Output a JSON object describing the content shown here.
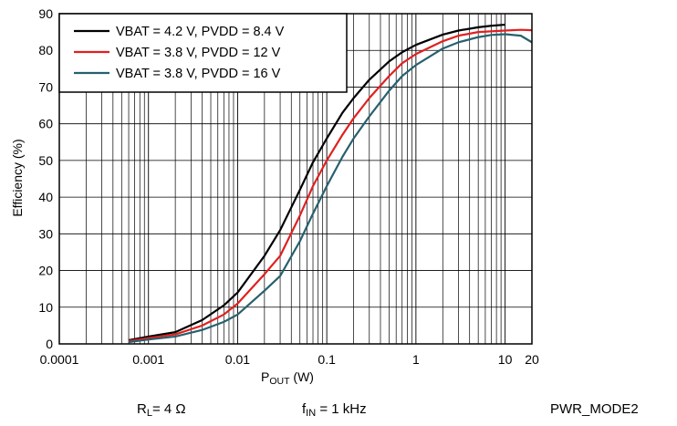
{
  "chart_data": {
    "type": "line",
    "x_scale": "log",
    "xlim": [
      0.0001,
      20
    ],
    "ylim": [
      0,
      90
    ],
    "y_ticks": [
      0,
      10,
      20,
      30,
      40,
      50,
      60,
      70,
      80,
      90
    ],
    "x_ticks": [
      0.0001,
      0.001,
      0.01,
      0.1,
      1,
      10,
      20
    ],
    "x_tick_labels": [
      "0.0001",
      "0.001",
      "0.01",
      "0.1",
      "1",
      "10",
      "20"
    ],
    "ylabel": "Efficiency (%)",
    "xlabel_main": "P",
    "xlabel_sub": "OUT",
    "xlabel_unit": " (W)",
    "grid": true,
    "legend_position": "top-left",
    "series": [
      {
        "name": "VBAT = 4.2 V, PVDD = 8.4 V",
        "color": "#000000",
        "points": [
          [
            0.0006,
            1
          ],
          [
            0.001,
            2
          ],
          [
            0.002,
            3.2
          ],
          [
            0.004,
            6.5
          ],
          [
            0.007,
            10.5
          ],
          [
            0.01,
            14
          ],
          [
            0.02,
            24
          ],
          [
            0.03,
            31
          ],
          [
            0.05,
            42
          ],
          [
            0.07,
            49.5
          ],
          [
            0.1,
            56
          ],
          [
            0.15,
            63
          ],
          [
            0.2,
            67
          ],
          [
            0.3,
            72
          ],
          [
            0.5,
            77
          ],
          [
            0.7,
            79.5
          ],
          [
            1,
            81.5
          ],
          [
            2,
            84.3
          ],
          [
            3,
            85.4
          ],
          [
            5,
            86.3
          ],
          [
            7,
            86.7
          ],
          [
            10,
            87
          ]
        ]
      },
      {
        "name": "VBAT = 3.8 V, PVDD = 12 V",
        "color": "#e02020",
        "points": [
          [
            0.0006,
            0.8
          ],
          [
            0.001,
            1.6
          ],
          [
            0.002,
            2.6
          ],
          [
            0.004,
            5
          ],
          [
            0.007,
            8
          ],
          [
            0.01,
            11
          ],
          [
            0.02,
            19
          ],
          [
            0.03,
            24
          ],
          [
            0.05,
            35
          ],
          [
            0.07,
            43
          ],
          [
            0.1,
            50
          ],
          [
            0.15,
            57
          ],
          [
            0.2,
            61.5
          ],
          [
            0.3,
            67
          ],
          [
            0.5,
            73
          ],
          [
            0.7,
            76.5
          ],
          [
            1,
            79
          ],
          [
            2,
            82.5
          ],
          [
            3,
            84
          ],
          [
            5,
            85
          ],
          [
            10,
            85.4
          ],
          [
            15,
            85.6
          ],
          [
            20,
            85.5
          ]
        ]
      },
      {
        "name": "VBAT = 3.8 V, PVDD = 16 V",
        "color": "#27606e",
        "points": [
          [
            0.0006,
            0.5
          ],
          [
            0.001,
            1.2
          ],
          [
            0.002,
            2
          ],
          [
            0.004,
            3.8
          ],
          [
            0.007,
            6
          ],
          [
            0.01,
            8
          ],
          [
            0.02,
            14.5
          ],
          [
            0.03,
            18.5
          ],
          [
            0.05,
            28
          ],
          [
            0.07,
            35.5
          ],
          [
            0.1,
            43
          ],
          [
            0.15,
            51
          ],
          [
            0.2,
            56
          ],
          [
            0.3,
            62
          ],
          [
            0.5,
            69
          ],
          [
            0.7,
            73
          ],
          [
            1,
            76
          ],
          [
            2,
            80.5
          ],
          [
            3,
            82.2
          ],
          [
            5,
            83.6
          ],
          [
            7,
            84.2
          ],
          [
            10,
            84.4
          ],
          [
            15,
            84
          ],
          [
            20,
            82.2
          ]
        ]
      }
    ]
  },
  "footer": {
    "rl_main": "R",
    "rl_sub": "L",
    "rl_value": "= 4  Ω",
    "fin_main": "f",
    "fin_sub": "IN",
    "fin_value": " = 1 kHz",
    "mode": "PWR_MODE2"
  }
}
